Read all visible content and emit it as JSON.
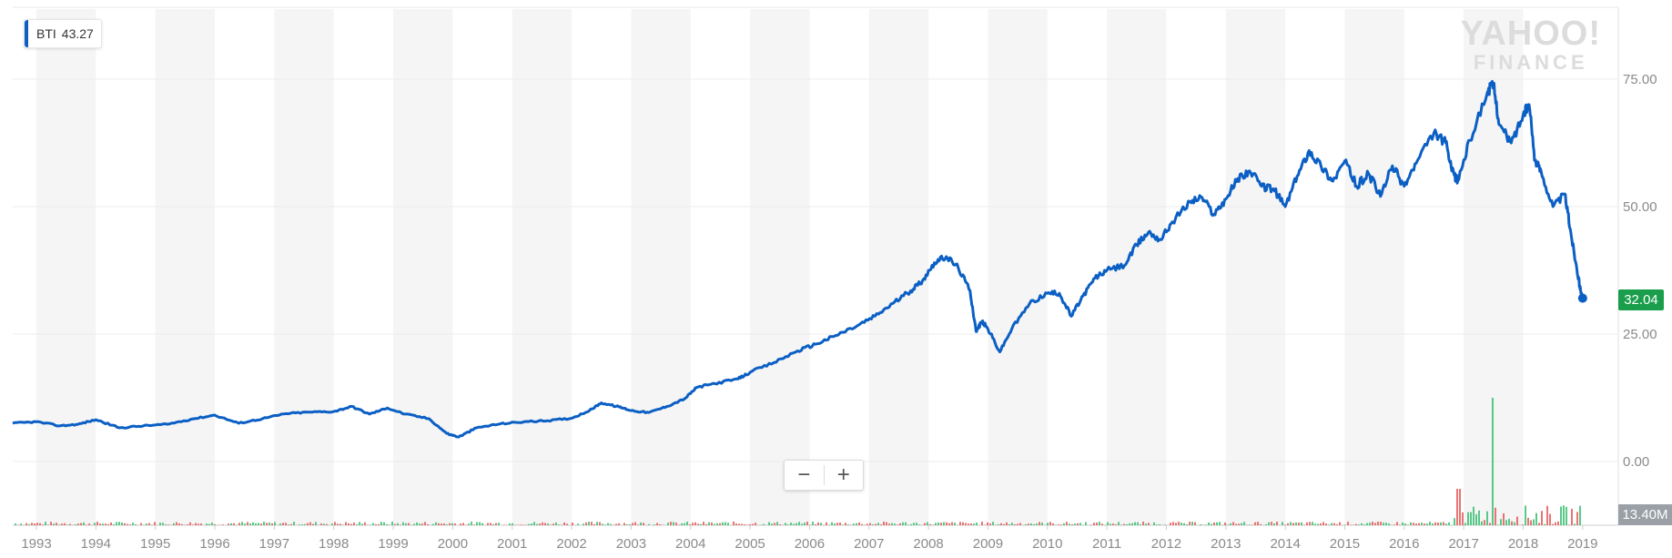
{
  "legend": {
    "symbol": "BTI",
    "value": "43.27"
  },
  "watermark": {
    "line1": "YAHOO!",
    "line2": "FINANCE"
  },
  "zoom": {
    "minus": "−",
    "plus": "+"
  },
  "badges": {
    "last_price": "32.04",
    "volume": "13.40M"
  },
  "colors": {
    "price_line": "#0b5fc4",
    "badge_green": "#1a9e4b",
    "badge_gray": "#9aa0a6",
    "volume_up": "#3bbf73",
    "volume_down": "#e65a5a"
  },
  "chart_data": {
    "type": "line",
    "title": "",
    "xlabel": "",
    "ylabel": "",
    "x_ticks": [
      "1993",
      "1994",
      "1995",
      "1996",
      "1997",
      "1998",
      "1999",
      "2000",
      "2001",
      "2002",
      "2003",
      "2004",
      "2005",
      "2006",
      "2007",
      "2008",
      "2009",
      "2010",
      "2011",
      "2012",
      "2013",
      "2014",
      "2015",
      "2016",
      "2017",
      "2018",
      "2019"
    ],
    "y_ticks": [
      "0.00",
      "25.00",
      "50.00",
      "75.00"
    ],
    "ylim": [
      0,
      84
    ],
    "xlim": [
      1992.6,
      2019.6
    ],
    "grid": true,
    "legend_position": "top-left",
    "series": [
      {
        "values": [
          [
            1992.6,
            7.5
          ],
          [
            1993.0,
            7.8
          ],
          [
            1993.4,
            7.0
          ],
          [
            1993.7,
            7.3
          ],
          [
            1994.0,
            8.2
          ],
          [
            1994.4,
            6.6
          ],
          [
            1994.8,
            7.0
          ],
          [
            1995.2,
            7.3
          ],
          [
            1995.6,
            8.3
          ],
          [
            1996.0,
            9.1
          ],
          [
            1996.4,
            7.5
          ],
          [
            1996.8,
            8.4
          ],
          [
            1997.2,
            9.4
          ],
          [
            1997.6,
            9.7
          ],
          [
            1998.0,
            9.8
          ],
          [
            1998.3,
            10.8
          ],
          [
            1998.6,
            9.3
          ],
          [
            1998.9,
            10.5
          ],
          [
            1999.2,
            9.3
          ],
          [
            1999.6,
            8.4
          ],
          [
            1999.9,
            5.5
          ],
          [
            2000.1,
            4.8
          ],
          [
            2000.4,
            6.6
          ],
          [
            2000.8,
            7.4
          ],
          [
            2001.2,
            7.8
          ],
          [
            2001.6,
            8.0
          ],
          [
            2002.0,
            8.5
          ],
          [
            2002.3,
            10.0
          ],
          [
            2002.5,
            11.5
          ],
          [
            2002.8,
            10.7
          ],
          [
            2003.0,
            10.0
          ],
          [
            2003.3,
            9.6
          ],
          [
            2003.6,
            10.8
          ],
          [
            2003.9,
            12.3
          ],
          [
            2004.1,
            14.5
          ],
          [
            2004.4,
            15.3
          ],
          [
            2004.8,
            16.2
          ],
          [
            2005.0,
            17.5
          ],
          [
            2005.4,
            19.4
          ],
          [
            2005.8,
            21.7
          ],
          [
            2006.1,
            23.0
          ],
          [
            2006.4,
            24.5
          ],
          [
            2006.8,
            26.6
          ],
          [
            2007.1,
            28.5
          ],
          [
            2007.4,
            31.0
          ],
          [
            2007.7,
            33.5
          ],
          [
            2007.9,
            35.5
          ],
          [
            2008.1,
            39.0
          ],
          [
            2008.3,
            40.2
          ],
          [
            2008.5,
            38.0
          ],
          [
            2008.7,
            33.5
          ],
          [
            2008.8,
            25.5
          ],
          [
            2008.9,
            27.5
          ],
          [
            2009.0,
            26.0
          ],
          [
            2009.2,
            21.5
          ],
          [
            2009.4,
            26.0
          ],
          [
            2009.7,
            31.0
          ],
          [
            2010.0,
            33.0
          ],
          [
            2010.2,
            33.0
          ],
          [
            2010.4,
            28.5
          ],
          [
            2010.6,
            32.5
          ],
          [
            2010.8,
            36.0
          ],
          [
            2011.0,
            37.5
          ],
          [
            2011.3,
            38.5
          ],
          [
            2011.5,
            42.5
          ],
          [
            2011.7,
            45.0
          ],
          [
            2011.9,
            43.5
          ],
          [
            2012.1,
            47.0
          ],
          [
            2012.4,
            51.0
          ],
          [
            2012.6,
            51.8
          ],
          [
            2012.8,
            48.5
          ],
          [
            2013.0,
            51.5
          ],
          [
            2013.2,
            55.5
          ],
          [
            2013.4,
            57.0
          ],
          [
            2013.6,
            54.0
          ],
          [
            2013.8,
            53.5
          ],
          [
            2014.0,
            50.0
          ],
          [
            2014.2,
            56.0
          ],
          [
            2014.4,
            61.0
          ],
          [
            2014.6,
            58.0
          ],
          [
            2014.8,
            55.0
          ],
          [
            2015.0,
            59.0
          ],
          [
            2015.2,
            54.0
          ],
          [
            2015.4,
            56.5
          ],
          [
            2015.6,
            52.0
          ],
          [
            2015.8,
            58.0
          ],
          [
            2016.0,
            54.0
          ],
          [
            2016.2,
            58.5
          ],
          [
            2016.5,
            64.5
          ],
          [
            2016.7,
            62.5
          ],
          [
            2016.8,
            57.0
          ],
          [
            2016.9,
            55.0
          ],
          [
            2017.1,
            63.0
          ],
          [
            2017.4,
            72.5
          ],
          [
            2017.5,
            74.0
          ],
          [
            2017.6,
            66.0
          ],
          [
            2017.8,
            62.5
          ],
          [
            2018.0,
            68.0
          ],
          [
            2018.1,
            70.0
          ],
          [
            2018.2,
            59.0
          ],
          [
            2018.3,
            57.0
          ],
          [
            2018.5,
            50.0
          ],
          [
            2018.7,
            52.5
          ],
          [
            2018.8,
            45.0
          ],
          [
            2018.9,
            38.0
          ],
          [
            2018.95,
            34.5
          ],
          [
            2019.0,
            32.04
          ]
        ]
      }
    ],
    "volume_axis_label": "13.40M",
    "last_value": 32.04
  }
}
